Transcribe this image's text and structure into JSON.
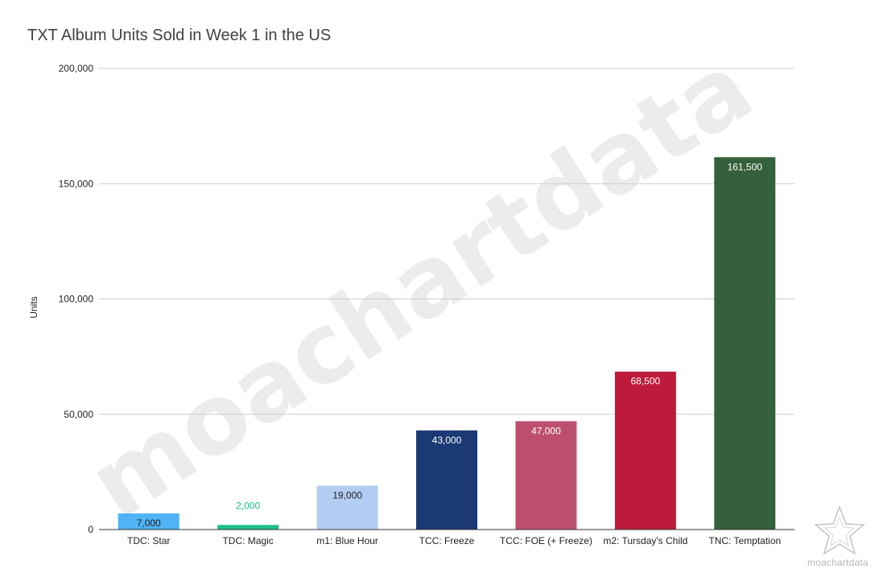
{
  "watermark": "moachartdata",
  "logo": {
    "text": "moachartdata",
    "icon": "star-outline-icon"
  },
  "chart_data": {
    "type": "bar",
    "title": "TXT Album Units Sold in Week 1 in the US",
    "xlabel": "",
    "ylabel": "Units",
    "ylim": [
      0,
      200000
    ],
    "yticks": [
      0,
      50000,
      100000,
      150000,
      200000
    ],
    "ytick_labels": [
      "0",
      "50,000",
      "100,000",
      "150,000",
      "200,000"
    ],
    "grid": true,
    "legend": "none",
    "categories": [
      "TDC: Star",
      "TDC: Magic",
      "m1: Blue Hour",
      "TCC: Freeze",
      "TCC: FOE (+ Freeze)",
      "m2: Tursday's Child",
      "TNC: Temptation"
    ],
    "values": [
      7000,
      2000,
      19000,
      43000,
      47000,
      68500,
      161500
    ],
    "data_labels": [
      "7,000",
      "2,000",
      "19,000",
      "43,000",
      "47,000",
      "68,500",
      "161,500"
    ],
    "colors": [
      "#4fb3f5",
      "#1cc08a",
      "#b3cdf2",
      "#1b3a75",
      "#bd5070",
      "#be1b3c",
      "#35603c"
    ],
    "label_colors": [
      "#222222",
      "#1cc08a",
      "#222222",
      "#ffffff",
      "#ffffff",
      "#ffffff",
      "#ffffff"
    ]
  }
}
